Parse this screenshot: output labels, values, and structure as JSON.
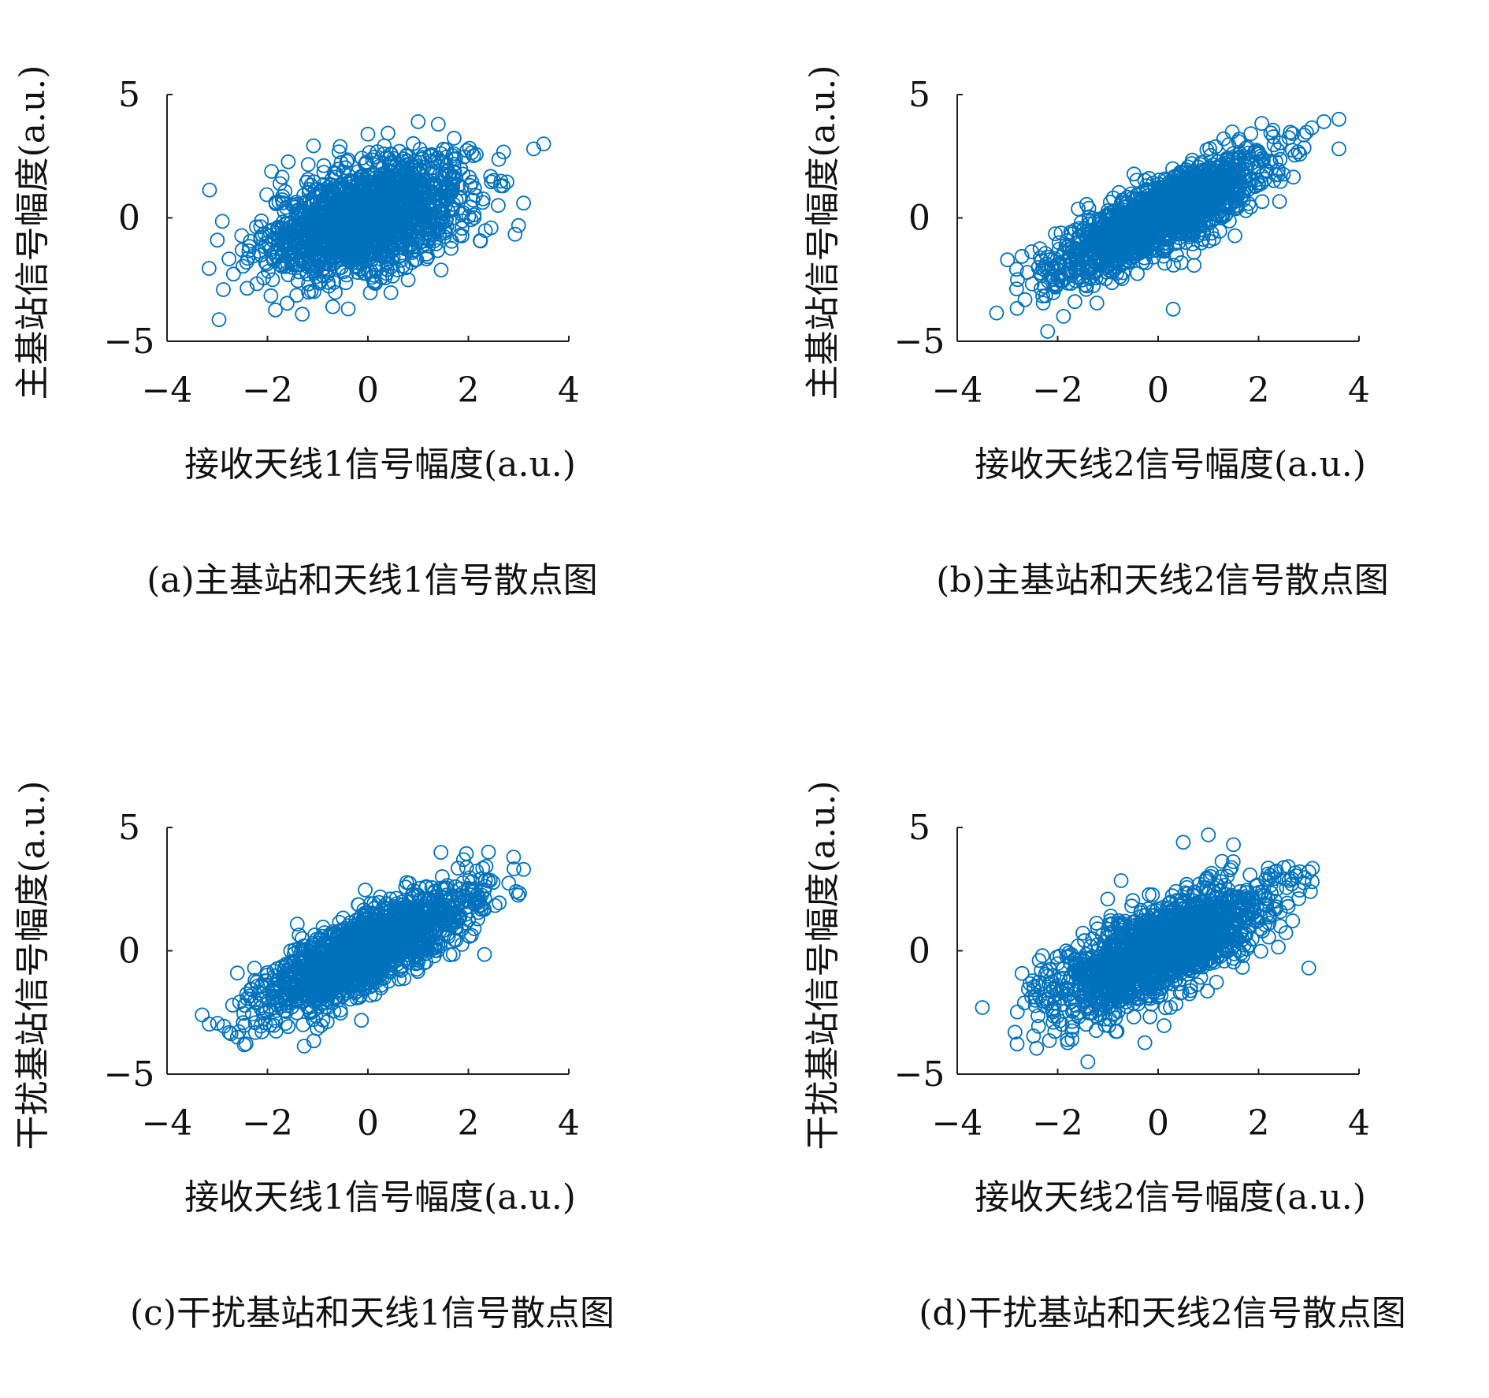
{
  "colors": {
    "marker": "#0072BD",
    "axis": "#222222",
    "text": "#111111"
  },
  "chart_data": [
    {
      "type": "scatter",
      "caption": "(a)主基站和天线1信号散点图",
      "title": "",
      "xlabel": "接收天线1信号幅度(a.u.)",
      "ylabel": "主基站信号幅度(a.u.)",
      "xlim": [
        -4,
        4
      ],
      "ylim": [
        -5,
        5
      ],
      "xticks": [
        -4,
        -2,
        0,
        2,
        4
      ],
      "yticks": [
        -5,
        0,
        5
      ],
      "xtick_labels": [
        "−4",
        "−2",
        "0",
        "2",
        "4"
      ],
      "ytick_labels": [
        "−5",
        "0",
        "5"
      ],
      "grid": false,
      "marker": "open-circle",
      "cloud": {
        "center": [
          0,
          0
        ],
        "sx": 1.0,
        "sy": 1.2,
        "corr": 0.45,
        "n": 1600
      },
      "outliers": [
        [
          3.5,
          3.0
        ],
        [
          3.3,
          2.8
        ],
        [
          3.1,
          0.6
        ],
        [
          -3.0,
          -0.9
        ],
        [
          -0.7,
          -3.6
        ],
        [
          1.0,
          3.9
        ],
        [
          1.4,
          3.8
        ]
      ]
    },
    {
      "type": "scatter",
      "caption": "(b)主基站和天线2信号散点图",
      "title": "",
      "xlabel": "接收天线2信号幅度(a.u.)",
      "ylabel": "主基站信号幅度(a.u.)",
      "xlim": [
        -4,
        4
      ],
      "ylim": [
        -5,
        5
      ],
      "xticks": [
        -4,
        -2,
        0,
        2,
        4
      ],
      "yticks": [
        -5,
        0,
        5
      ],
      "xtick_labels": [
        "−4",
        "−2",
        "0",
        "2",
        "4"
      ],
      "ytick_labels": [
        "−5",
        "0",
        "5"
      ],
      "grid": false,
      "marker": "open-circle",
      "cloud": {
        "center": [
          0,
          0
        ],
        "sx": 1.05,
        "sy": 1.25,
        "corr": 0.82,
        "n": 1600
      },
      "outliers": [
        [
          3.6,
          4.0
        ],
        [
          3.3,
          3.9
        ],
        [
          3.6,
          2.8
        ],
        [
          -2.2,
          -4.6
        ],
        [
          0.3,
          -3.7
        ],
        [
          -2.8,
          -2.5
        ],
        [
          -3.0,
          -1.7
        ]
      ]
    },
    {
      "type": "scatter",
      "caption": "(c)干扰基站和天线1信号散点图",
      "title": "",
      "xlabel": "接收天线1信号幅度(a.u.)",
      "ylabel": "干扰基站信号幅度(a.u.)",
      "xlim": [
        -4,
        4
      ],
      "ylim": [
        -5,
        5
      ],
      "xticks": [
        -4,
        -2,
        0,
        2,
        4
      ],
      "yticks": [
        -5,
        0,
        5
      ],
      "xtick_labels": [
        "−4",
        "−2",
        "0",
        "2",
        "4"
      ],
      "ytick_labels": [
        "−5",
        "0",
        "5"
      ],
      "grid": false,
      "marker": "open-circle",
      "cloud": {
        "center": [
          0,
          0
        ],
        "sx": 1.05,
        "sy": 1.3,
        "corr": 0.8,
        "n": 1600
      },
      "outliers": [
        [
          -3.3,
          -2.6
        ],
        [
          -2.6,
          -0.9
        ],
        [
          3.1,
          3.3
        ],
        [
          2.9,
          3.8
        ],
        [
          2.4,
          4.0
        ],
        [
          -2.6,
          -3.5
        ]
      ]
    },
    {
      "type": "scatter",
      "caption": "(d)干扰基站和天线2信号散点图",
      "title": "",
      "xlabel": "接收天线2信号幅度(a.u.)",
      "ylabel": "干扰基站信号幅度(a.u.)",
      "xlim": [
        -4,
        4
      ],
      "ylim": [
        -5,
        5
      ],
      "xticks": [
        -4,
        -2,
        0,
        2,
        4
      ],
      "yticks": [
        -5,
        0,
        5
      ],
      "xtick_labels": [
        "−4",
        "−2",
        "0",
        "2",
        "4"
      ],
      "ytick_labels": [
        "−5",
        "0",
        "5"
      ],
      "grid": false,
      "marker": "open-circle",
      "cloud": {
        "center": [
          0,
          0
        ],
        "sx": 1.1,
        "sy": 1.35,
        "corr": 0.72,
        "n": 1600
      },
      "outliers": [
        [
          -3.5,
          -2.3
        ],
        [
          1.0,
          4.7
        ],
        [
          0.5,
          4.4
        ],
        [
          1.5,
          4.3
        ],
        [
          3.0,
          3.2
        ],
        [
          -1.4,
          -4.5
        ],
        [
          3.0,
          -0.7
        ]
      ]
    }
  ]
}
